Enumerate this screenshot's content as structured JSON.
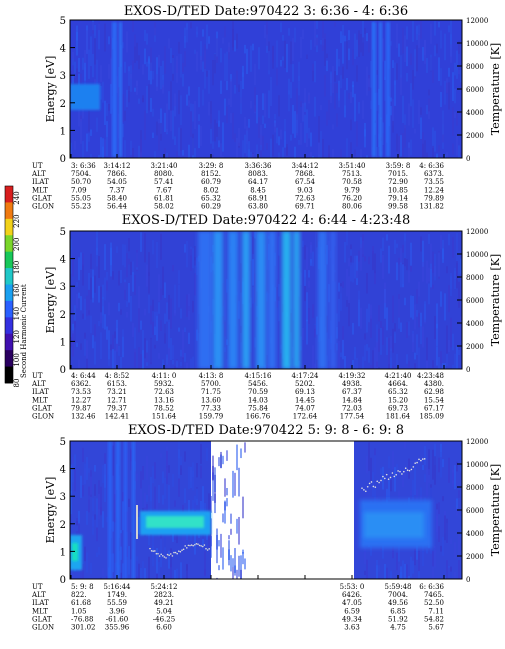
{
  "colorbar": {
    "label": "Second Harmonic Current",
    "ticks": [
      "240",
      "220",
      "200",
      "180",
      "160",
      "140",
      "120",
      "100",
      "80"
    ],
    "colors": [
      "#d81e1e",
      "#f07a10",
      "#f2d21a",
      "#7ad62a",
      "#18c85a",
      "#20c8c8",
      "#1aa0f0",
      "#2a60ff",
      "#3430e0",
      "#4010b0",
      "#2a0060",
      "#000000"
    ]
  },
  "chart_data": [
    {
      "type": "heatmap",
      "title": "EXOS-D/TED   Date:970422  3: 6:36 - 4: 6:36",
      "ylabel": "Energy [eV]",
      "y2label": "Temperature [K]",
      "ylim": [
        0,
        5
      ],
      "y2lim": [
        0,
        12000
      ],
      "yticks": [
        "0",
        "1",
        "2",
        "3",
        "4",
        "5"
      ],
      "y2ticks": [
        "0",
        "2000",
        "4000",
        "6000",
        "8000",
        "10000",
        "12000"
      ],
      "gaps": [],
      "rows": [
        {
          "label": "UT",
          "values": [
            "3: 6:36",
            "3:14:12",
            "3:21:40",
            "3:29: 8",
            "3:36:36",
            "3:44:12",
            "3:51:40",
            "3:59: 8",
            "4: 6:36"
          ]
        },
        {
          "label": "ALT",
          "values": [
            "7504.",
            "7866.",
            "8080.",
            "8152.",
            "8083.",
            "7868.",
            "7513.",
            "7015.",
            "6373."
          ]
        },
        {
          "label": "ILAT",
          "values": [
            "50.70",
            "54.05",
            "57.41",
            "60.79",
            "64.17",
            "67.54",
            "70.58",
            "72.90",
            "73.55"
          ]
        },
        {
          "label": "MLT",
          "values": [
            "7.09",
            "7.37",
            "7.67",
            "8.02",
            "8.45",
            "9.03",
            "9.79",
            "10.85",
            "12.24"
          ]
        },
        {
          "label": "GLAT",
          "values": [
            "55.05",
            "58.40",
            "61.81",
            "65.32",
            "68.91",
            "72.63",
            "76.20",
            "79.14",
            "79.89"
          ]
        },
        {
          "label": "GLON",
          "values": [
            "55.23",
            "56.44",
            "58.02",
            "60.29",
            "63.80",
            "69.71",
            "80.06",
            "99.58",
            "131.82"
          ]
        }
      ]
    },
    {
      "type": "heatmap",
      "title": "EXOS-D/TED   Date:970422  4: 6:44 - 4:23:48",
      "ylabel": "Energy [eV]",
      "y2label": "Temperature [K]",
      "ylim": [
        0,
        5
      ],
      "y2lim": [
        0,
        12000
      ],
      "yticks": [
        "0",
        "1",
        "2",
        "3",
        "4",
        "5"
      ],
      "y2ticks": [
        "0",
        "2000",
        "4000",
        "6000",
        "8000",
        "10000",
        "12000"
      ],
      "gaps": [],
      "rows": [
        {
          "label": "UT",
          "values": [
            "4: 6:44",
            "4: 8:52",
            "4:11: 0",
            "4:13: 8",
            "4:15:16",
            "4:17:24",
            "4:19:32",
            "4:21:40",
            "4:23:48"
          ]
        },
        {
          "label": "ALT",
          "values": [
            "6362.",
            "6153.",
            "5932.",
            "5700.",
            "5456.",
            "5202.",
            "4938.",
            "4664.",
            "4380."
          ]
        },
        {
          "label": "ILAT",
          "values": [
            "73.53",
            "73.21",
            "72.63",
            "71.75",
            "70.59",
            "69.13",
            "67.37",
            "65.32",
            "62.98"
          ]
        },
        {
          "label": "MLT",
          "values": [
            "12.27",
            "12.71",
            "13.16",
            "13.60",
            "14.03",
            "14.45",
            "14.84",
            "15.20",
            "15.54"
          ]
        },
        {
          "label": "GLAT",
          "values": [
            "79.87",
            "79.37",
            "78.52",
            "77.33",
            "75.84",
            "74.07",
            "72.03",
            "69.73",
            "67.17"
          ]
        },
        {
          "label": "GLON",
          "values": [
            "132.46",
            "142.41",
            "151.64",
            "159.79",
            "166.76",
            "172.64",
            "177.54",
            "181.64",
            "185.09"
          ]
        }
      ]
    },
    {
      "type": "heatmap",
      "title": "EXOS-D/TED   Date:970422  5: 9: 8 - 6: 9: 8",
      "ylabel": "Energy [eV]",
      "y2label": "Temperature [K]",
      "ylim": [
        0,
        5
      ],
      "y2lim": [
        0,
        12000
      ],
      "yticks": [
        "0",
        "1",
        "2",
        "3",
        "4",
        "5"
      ],
      "y2ticks": [
        "0",
        "2000",
        "4000",
        "6000",
        "8000",
        "10000",
        "12000"
      ],
      "gaps": [
        [
          0.447,
          0.745
        ]
      ],
      "rows": [
        {
          "label": "UT",
          "values": [
            "5: 9: 8",
            "5:16:44",
            "5:24:12",
            "",
            "",
            "",
            "5:53: 0",
            "5:59:48",
            "6: 6:36"
          ]
        },
        {
          "label": "ALT",
          "values": [
            "822.",
            "1749.",
            "2823.",
            "",
            "",
            "",
            "6426.",
            "7004.",
            "7465."
          ]
        },
        {
          "label": "ILAT",
          "values": [
            "61.68",
            "55.59",
            "49.21",
            "",
            "",
            "",
            "47.05",
            "49.56",
            "52.50"
          ]
        },
        {
          "label": "MLT",
          "values": [
            "1.05",
            "3.96",
            "5.04",
            "",
            "",
            "",
            "6.59",
            "6.85",
            "7.11"
          ]
        },
        {
          "label": "GLAT",
          "values": [
            "-76.88",
            "-61.60",
            "-46.25",
            "",
            "",
            "",
            "49.34",
            "51.92",
            "54.82"
          ]
        },
        {
          "label": "GLON",
          "values": [
            "301.02",
            "355.96",
            "6.60",
            "",
            "",
            "",
            "3.63",
            "4.75",
            "5.67"
          ]
        }
      ]
    }
  ]
}
